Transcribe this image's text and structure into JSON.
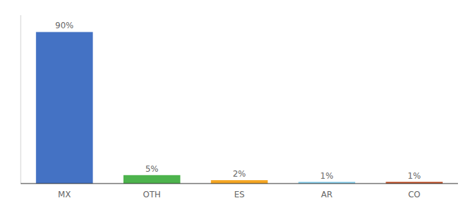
{
  "chart_data": {
    "type": "bar",
    "categories": [
      "MX",
      "OTH",
      "ES",
      "AR",
      "CO"
    ],
    "values": [
      90,
      5,
      2,
      1,
      1
    ],
    "value_labels": [
      "90%",
      "5%",
      "2%",
      "1%",
      "1%"
    ],
    "colors": [
      "#4472c4",
      "#4db34d",
      "#f5a623",
      "#87ceeb",
      "#c0522a"
    ],
    "ylim": [
      0,
      100
    ],
    "data_labels": true,
    "tick_labels": "x",
    "grid": false
  }
}
